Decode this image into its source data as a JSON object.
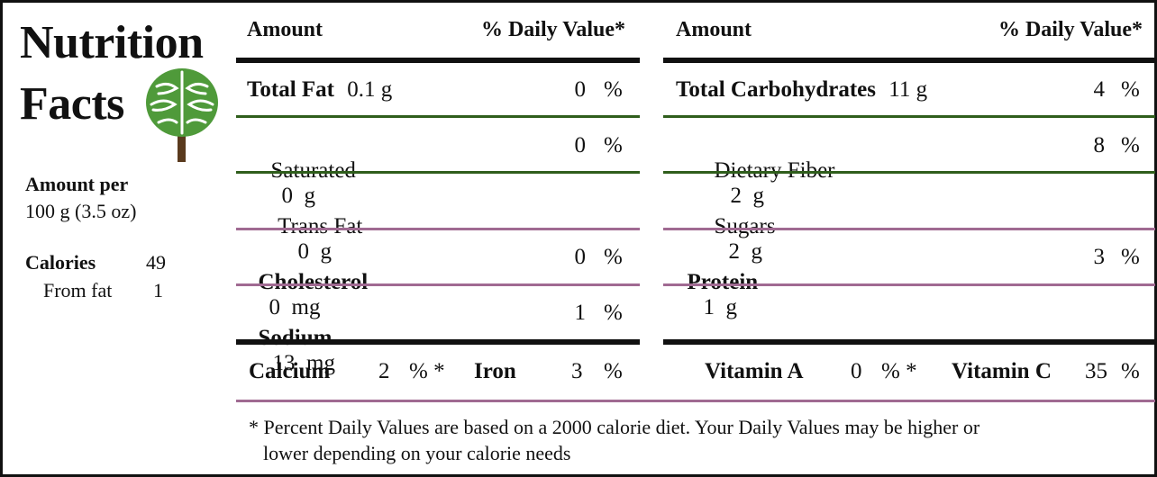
{
  "title": {
    "line1": "Nutrition",
    "line2": "Facts"
  },
  "serving": {
    "label": "Amount per",
    "size": "100 g (3.5 oz)"
  },
  "calories": {
    "label": "Calories",
    "value": "49",
    "from_fat_label": "From fat",
    "from_fat_value": "1"
  },
  "headers": {
    "amount": "Amount",
    "daily_value": "% Daily Value*"
  },
  "left_rows": [
    {
      "label": "Total Fat",
      "amount": "0.1 g",
      "dv": "0",
      "pct": "%"
    },
    {
      "label": "Saturated",
      "amount": "0  g",
      "dv": "0",
      "pct": "%"
    },
    {
      "label": "Trans Fat",
      "amount": "0  g",
      "dv": "",
      "pct": ""
    },
    {
      "label": "Cholesterol",
      "amount": "0  mg",
      "dv": "0",
      "pct": "%"
    },
    {
      "label": "Sodium",
      "amount": "13  mg",
      "dv": "1",
      "pct": "%"
    }
  ],
  "right_rows": [
    {
      "label": "Total Carbohydrates",
      "amount": "11 g",
      "dv": "4",
      "pct": "%"
    },
    {
      "label": "Dietary Fiber",
      "amount": "2  g",
      "dv": "8",
      "pct": "%"
    },
    {
      "label": "Sugars",
      "amount": "2  g",
      "dv": "",
      "pct": ""
    },
    {
      "label": "Protein",
      "amount": "1  g",
      "dv": "3",
      "pct": "%"
    }
  ],
  "minerals": {
    "calcium_label": "Calcium",
    "calcium_value": "2",
    "calcium_pct": "% *",
    "iron_label": "Iron",
    "iron_value": "3",
    "iron_pct": "%",
    "vita_label": "Vitamin A",
    "vita_value": "0",
    "vita_pct": "% *",
    "vitc_label": "Vitamin C",
    "vitc_value": "35",
    "vitc_pct": "%"
  },
  "footnote": {
    "line1": "* Percent Daily Values are based on a 2000 calorie diet. Your Daily Values may be higher or",
    "line2": "lower depending on your calorie needs"
  },
  "icons": {
    "logo": "brain-tree-icon"
  },
  "colors": {
    "dark_rule": "#111111",
    "green_rule": "#2f5e1c",
    "pink_rule": "#a06a92",
    "tree_green": "#4f9a3a",
    "trunk": "#5a3a1e"
  }
}
